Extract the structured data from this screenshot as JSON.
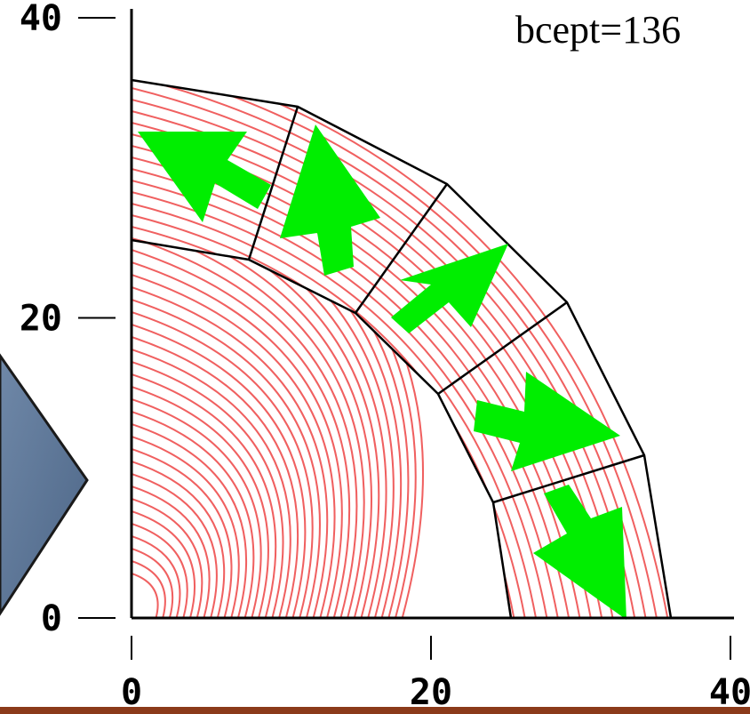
{
  "chart_data": {
    "type": "field",
    "annotation": "bcept=136",
    "xlim": [
      0,
      40
    ],
    "ylim": [
      0,
      40
    ],
    "xticks": [
      0,
      20,
      40
    ],
    "yticks": [
      0,
      20,
      40
    ]
  }
}
